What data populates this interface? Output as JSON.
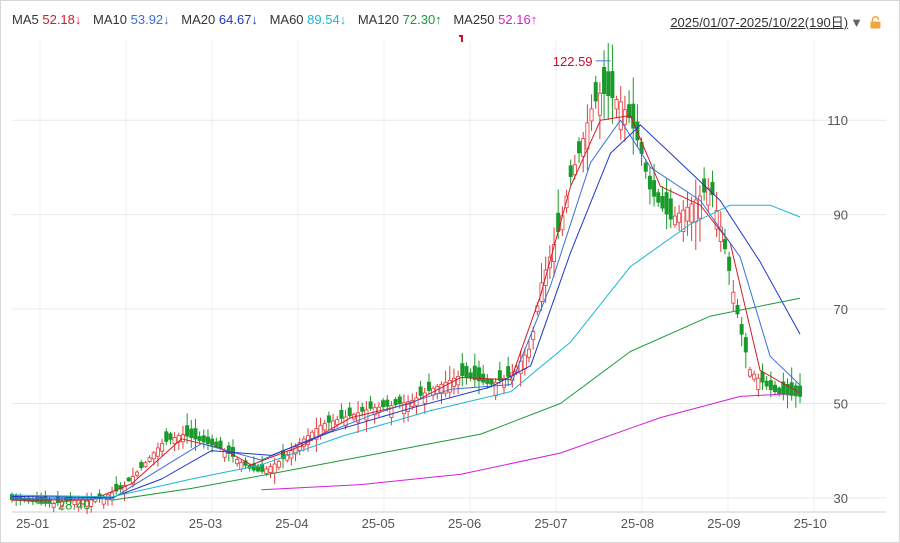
{
  "legend": [
    {
      "label": "MA5",
      "value": "52.18↓",
      "color": "#d01c2a"
    },
    {
      "label": "MA10",
      "value": "53.92↓",
      "color": "#3b6fd6"
    },
    {
      "label": "MA20",
      "value": "64.67↓",
      "color": "#1f36c9"
    },
    {
      "label": "MA60",
      "value": "89.54↓",
      "color": "#19b7d1"
    },
    {
      "label": "MA120",
      "value": "72.30↑",
      "color": "#1c9a3a"
    },
    {
      "label": "MA250",
      "value": "52.16↑",
      "color": "#d21fd8"
    }
  ],
  "range": {
    "text": "2025/01/07-2025/10/22(190日)",
    "caret_icon": "triangle-down-icon",
    "lock_icon": "lock-icon"
  },
  "chart_data": {
    "type": "candlestick",
    "title": "",
    "x_ticks": [
      "25-01",
      "25-02",
      "25-03",
      "25-04",
      "25-05",
      "25-06",
      "25-07",
      "25-08",
      "25-09",
      "25-10"
    ],
    "y_ticks": [
      30,
      50,
      70,
      90,
      110
    ],
    "ylim": [
      27,
      127
    ],
    "grid": true,
    "annotations": {
      "max": "122.59",
      "min": "28.40"
    },
    "colors": {
      "up": "#e23b3b",
      "down": "#1a9a2a"
    },
    "trend_points": [
      [
        2025.0,
        29.6
      ],
      [
        2025.02,
        29.2
      ],
      [
        2025.04,
        28.8
      ],
      [
        2025.06,
        29.4
      ],
      [
        2025.08,
        29.6
      ],
      [
        2025.09,
        30.0
      ],
      [
        2025.11,
        32.0
      ],
      [
        2025.13,
        36.5
      ],
      [
        2025.15,
        41.5
      ],
      [
        2025.17,
        43.5
      ],
      [
        2025.19,
        42.0
      ],
      [
        2025.21,
        40.5
      ],
      [
        2025.22,
        39.0
      ],
      [
        2025.24,
        36.0
      ],
      [
        2025.25,
        35.5
      ],
      [
        2025.27,
        38.0
      ],
      [
        2025.29,
        42.0
      ],
      [
        2025.31,
        45.5
      ],
      [
        2025.34,
        47.5
      ],
      [
        2025.36,
        49.0
      ],
      [
        2025.38,
        49.5
      ],
      [
        2025.4,
        50.5
      ],
      [
        2025.42,
        53.0
      ],
      [
        2025.45,
        56.0
      ],
      [
        2025.48,
        54.0
      ],
      [
        2025.5,
        56.0
      ],
      [
        2025.52,
        62.0
      ],
      [
        2025.53,
        75.0
      ],
      [
        2025.55,
        88.0
      ],
      [
        2025.56,
        98.0
      ],
      [
        2025.57,
        104.0
      ],
      [
        2025.58,
        112.0
      ],
      [
        2025.59,
        116.0
      ],
      [
        2025.61,
        114.0
      ],
      [
        2025.62,
        110.0
      ],
      [
        2025.63,
        104.0
      ],
      [
        2025.64,
        95.0
      ],
      [
        2025.66,
        89.0
      ],
      [
        2025.68,
        92.0
      ],
      [
        2025.7,
        96.0
      ],
      [
        2025.71,
        88.0
      ],
      [
        2025.73,
        66.0
      ],
      [
        2025.74,
        57.0
      ],
      [
        2025.76,
        53.0
      ],
      [
        2025.77,
        52.0
      ],
      [
        2025.79,
        51.5
      ]
    ],
    "series": [
      {
        "name": "MA5",
        "color": "#d01c2a",
        "points": [
          [
            2025.0,
            29.5
          ],
          [
            2025.08,
            29.6
          ],
          [
            2025.12,
            33.0
          ],
          [
            2025.17,
            42.5
          ],
          [
            2025.21,
            40.5
          ],
          [
            2025.24,
            37.0
          ],
          [
            2025.29,
            41.0
          ],
          [
            2025.34,
            47.0
          ],
          [
            2025.4,
            50.0
          ],
          [
            2025.45,
            55.5
          ],
          [
            2025.5,
            55.0
          ],
          [
            2025.53,
            73.0
          ],
          [
            2025.56,
            96.0
          ],
          [
            2025.59,
            110.0
          ],
          [
            2025.62,
            111.0
          ],
          [
            2025.65,
            96.0
          ],
          [
            2025.69,
            92.0
          ],
          [
            2025.72,
            84.0
          ],
          [
            2025.75,
            57.0
          ],
          [
            2025.79,
            52.2
          ]
        ]
      },
      {
        "name": "MA10",
        "color": "#3b6fd6",
        "points": [
          [
            2025.0,
            29.8
          ],
          [
            2025.1,
            29.8
          ],
          [
            2025.14,
            35.0
          ],
          [
            2025.19,
            41.5
          ],
          [
            2025.25,
            38.0
          ],
          [
            2025.3,
            42.5
          ],
          [
            2025.36,
            47.5
          ],
          [
            2025.44,
            53.0
          ],
          [
            2025.5,
            54.0
          ],
          [
            2025.54,
            75.0
          ],
          [
            2025.58,
            101.0
          ],
          [
            2025.61,
            110.0
          ],
          [
            2025.64,
            100.0
          ],
          [
            2025.69,
            93.0
          ],
          [
            2025.73,
            81.0
          ],
          [
            2025.76,
            60.0
          ],
          [
            2025.79,
            53.9
          ]
        ]
      },
      {
        "name": "MA20",
        "color": "#1f36c9",
        "points": [
          [
            2025.0,
            30.3
          ],
          [
            2025.1,
            30.0
          ],
          [
            2025.15,
            34.0
          ],
          [
            2025.2,
            40.0
          ],
          [
            2025.26,
            39.0
          ],
          [
            2025.32,
            44.0
          ],
          [
            2025.4,
            49.0
          ],
          [
            2025.48,
            53.5
          ],
          [
            2025.52,
            58.0
          ],
          [
            2025.56,
            82.0
          ],
          [
            2025.6,
            103.0
          ],
          [
            2025.63,
            109.0
          ],
          [
            2025.66,
            103.0
          ],
          [
            2025.71,
            93.0
          ],
          [
            2025.75,
            80.0
          ],
          [
            2025.79,
            64.7
          ]
        ]
      },
      {
        "name": "MA60",
        "color": "#19b7d1",
        "points": [
          [
            2025.0,
            30.6
          ],
          [
            2025.1,
            30.2
          ],
          [
            2025.18,
            34.0
          ],
          [
            2025.25,
            37.0
          ],
          [
            2025.33,
            43.0
          ],
          [
            2025.42,
            48.5
          ],
          [
            2025.5,
            52.5
          ],
          [
            2025.56,
            63.0
          ],
          [
            2025.62,
            79.0
          ],
          [
            2025.68,
            88.0
          ],
          [
            2025.72,
            92.0
          ],
          [
            2025.76,
            92.0
          ],
          [
            2025.79,
            89.5
          ]
        ]
      },
      {
        "name": "MA120",
        "color": "#1c9a3a",
        "points": [
          [
            2025.1,
            29.5
          ],
          [
            2025.18,
            32.0
          ],
          [
            2025.27,
            35.5
          ],
          [
            2025.37,
            39.5
          ],
          [
            2025.47,
            43.5
          ],
          [
            2025.55,
            50.0
          ],
          [
            2025.62,
            61.0
          ],
          [
            2025.7,
            68.5
          ],
          [
            2025.79,
            72.3
          ]
        ]
      },
      {
        "name": "MA250",
        "color": "#d21fd8",
        "points": [
          [
            2025.25,
            31.7
          ],
          [
            2025.35,
            32.8
          ],
          [
            2025.45,
            35.0
          ],
          [
            2025.55,
            39.5
          ],
          [
            2025.65,
            47.0
          ],
          [
            2025.73,
            51.5
          ],
          [
            2025.79,
            52.2
          ]
        ]
      }
    ]
  }
}
